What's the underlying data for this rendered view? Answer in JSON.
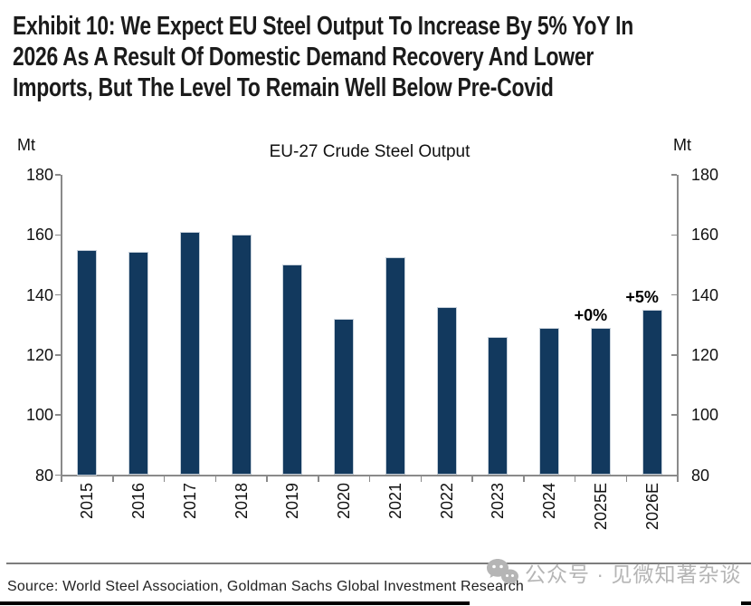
{
  "exhibit": {
    "title": "Exhibit 10: We Expect EU Steel Output To Increase By 5% YoY In\n2026 As A Result Of Domestic Demand Recovery And Lower\nImports, But The Level To Remain Well Below Pre-Covid"
  },
  "chart_data": {
    "type": "bar",
    "title": "EU-27 Crude Steel Output",
    "unit_left": "Mt",
    "unit_right": "Mt",
    "categories": [
      "2015",
      "2016",
      "2017",
      "2018",
      "2019",
      "2020",
      "2021",
      "2022",
      "2023",
      "2024",
      "2025E",
      "2026E"
    ],
    "values": [
      155,
      154.5,
      161,
      160,
      150,
      132,
      152.5,
      136,
      126,
      129,
      129,
      135
    ],
    "annotations": [
      {
        "category": "2025E",
        "label": "+0%"
      },
      {
        "category": "2026E",
        "label": "+5%"
      }
    ],
    "ylim": [
      80,
      180
    ],
    "yticks": [
      180,
      160,
      140,
      120,
      100,
      80
    ],
    "ylabel": "Mt",
    "xlabel": "",
    "bar_color": "#12395E",
    "axis_color": "#8a8a8a",
    "grid": false,
    "legend": false,
    "dual_y_axis": true,
    "x_labels_rotated_degrees": -90
  },
  "footer": {
    "source": "Source: World Steel Association, Goldman Sachs Global Investment Research"
  },
  "watermark": {
    "icon": "wechat-icon",
    "text": "公众号 · 见微知著杂谈"
  }
}
